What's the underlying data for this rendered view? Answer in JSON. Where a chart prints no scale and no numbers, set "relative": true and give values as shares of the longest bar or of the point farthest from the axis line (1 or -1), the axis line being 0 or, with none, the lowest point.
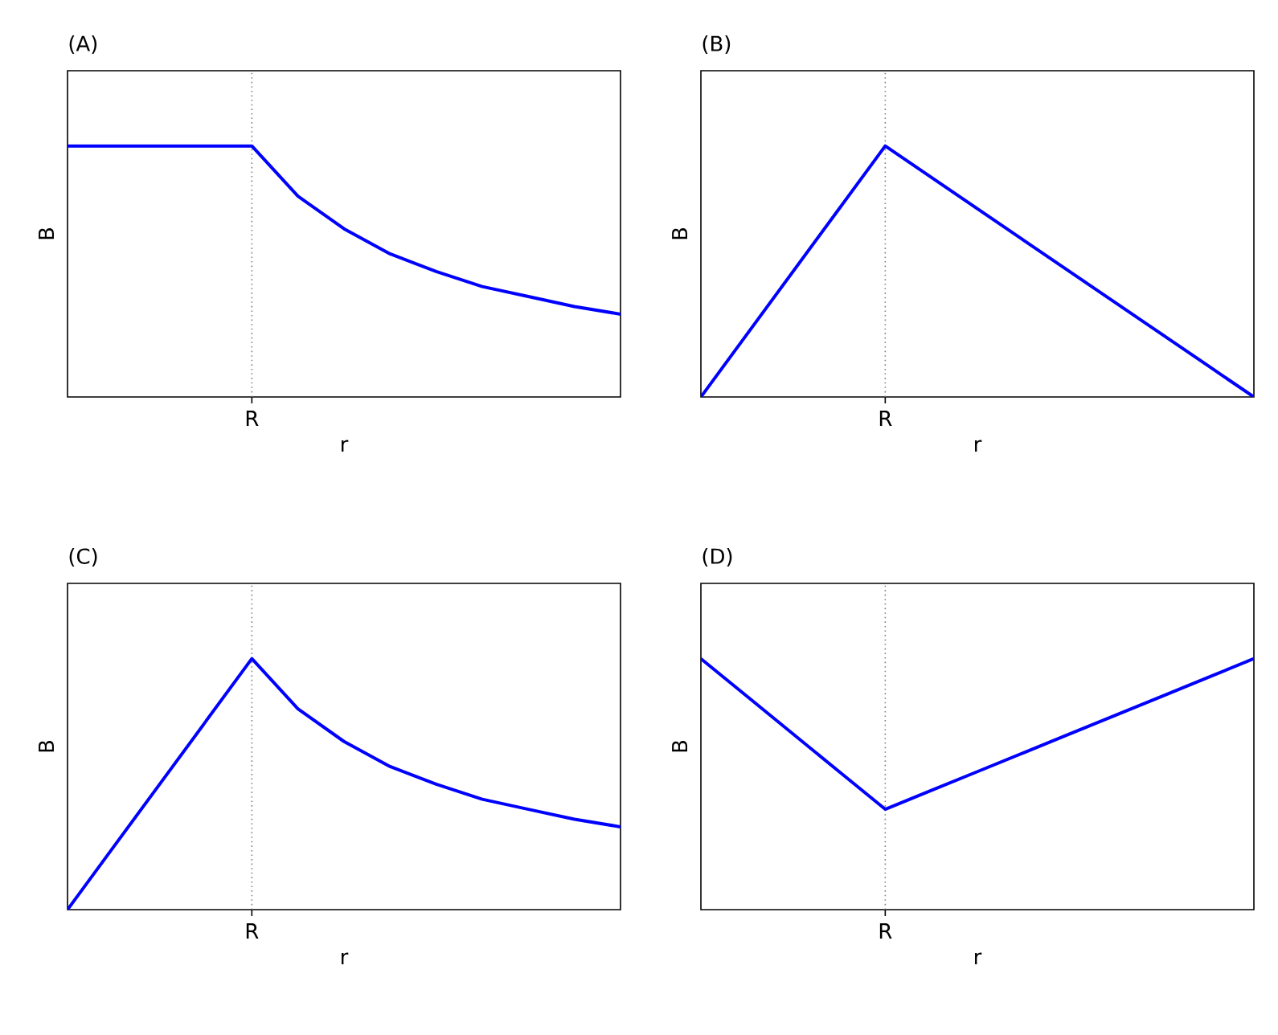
{
  "chart_data": [
    {
      "type": "line",
      "title": "(A)",
      "xlabel": "r",
      "ylabel": "B",
      "relative": true,
      "color": "#0000ff",
      "annotations": [
        "R"
      ],
      "categories": [
        null,
        null,
        null,
        null,
        null,
        null,
        null,
        null,
        null,
        null,
        null,
        null,
        null
      ],
      "values": [
        1,
        1,
        1,
        1,
        1,
        0.8,
        0.67,
        0.57,
        0.5,
        0.44,
        0.4,
        0.36,
        0.33
      ]
    },
    {
      "type": "line",
      "title": "(B)",
      "xlabel": "r",
      "ylabel": "B",
      "relative": true,
      "color": "#0000ff",
      "annotations": [
        "R"
      ],
      "categories": [
        null,
        null,
        null,
        null,
        null,
        null,
        null,
        null,
        null,
        null,
        null,
        null,
        null
      ],
      "values": [
        0,
        0.25,
        0.5,
        0.75,
        1,
        0.875,
        0.75,
        0.625,
        0.5,
        0.375,
        0.25,
        0.125,
        0
      ]
    },
    {
      "type": "line",
      "title": "(C)",
      "xlabel": "r",
      "ylabel": "B",
      "relative": true,
      "color": "#0000ff",
      "annotations": [
        "R"
      ],
      "categories": [
        null,
        null,
        null,
        null,
        null,
        null,
        null,
        null,
        null,
        null,
        null,
        null,
        null
      ],
      "values": [
        0,
        0.25,
        0.5,
        0.75,
        1,
        0.8,
        0.67,
        0.57,
        0.5,
        0.44,
        0.4,
        0.36,
        0.33
      ]
    },
    {
      "type": "line",
      "title": "(D)",
      "xlabel": "r",
      "ylabel": "B",
      "relative": true,
      "color": "#0000ff",
      "annotations": [
        "R"
      ],
      "categories": [
        null,
        null,
        null,
        null,
        null,
        null,
        null,
        null,
        null,
        null,
        null,
        null,
        null
      ],
      "values": [
        1,
        0.85,
        0.7,
        0.55,
        0.4,
        0.475,
        0.55,
        0.625,
        0.7,
        0.775,
        0.85,
        0.925,
        1
      ]
    }
  ]
}
